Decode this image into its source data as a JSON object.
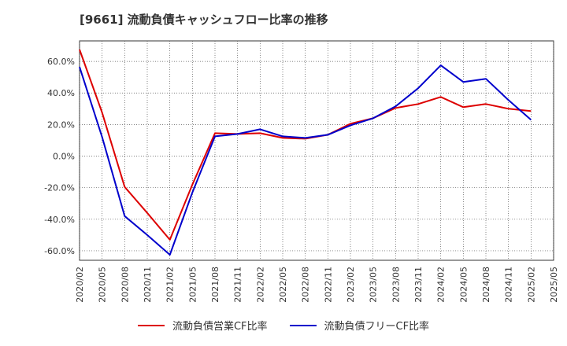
{
  "chart_data": {
    "type": "line",
    "title": "[9661]  流動負債キャッシュフロー比率の推移",
    "x": [
      "2020/02",
      "2020/05",
      "2020/08",
      "2020/11",
      "2021/02",
      "2021/05",
      "2021/08",
      "2021/11",
      "2022/02",
      "2022/05",
      "2022/08",
      "2022/11",
      "2023/02",
      "2023/05",
      "2023/08",
      "2023/11",
      "2024/02",
      "2024/05",
      "2024/08",
      "2024/11",
      "2025/02",
      "2025/05"
    ],
    "y_ticks": [
      "60.0%",
      "40.0%",
      "20.0%",
      "0.0%",
      "-20.0%",
      "-40.0%",
      "-60.0%"
    ],
    "ylim": [
      -66,
      73
    ],
    "grid": true,
    "legend_position": "bottom",
    "series": [
      {
        "name": "流動負債営業CF比率",
        "color": "#dd0000",
        "values": [
          67.5,
          27.5,
          -19.5,
          -36.0,
          -53.0,
          -18.0,
          14.5,
          14.0,
          14.5,
          11.5,
          11.0,
          13.5,
          20.5,
          24.0,
          30.5,
          33.0,
          37.5,
          31.0,
          33.0,
          30.0,
          28.5,
          null
        ]
      },
      {
        "name": "流動負債フリーCF比率",
        "color": "#0000cc",
        "values": [
          56.5,
          12.0,
          -38.0,
          -50.0,
          -62.5,
          -23.0,
          12.5,
          14.0,
          17.0,
          12.5,
          11.5,
          13.5,
          19.5,
          24.0,
          31.5,
          43.0,
          57.5,
          47.0,
          49.0,
          35.5,
          23.0,
          null
        ]
      }
    ]
  }
}
